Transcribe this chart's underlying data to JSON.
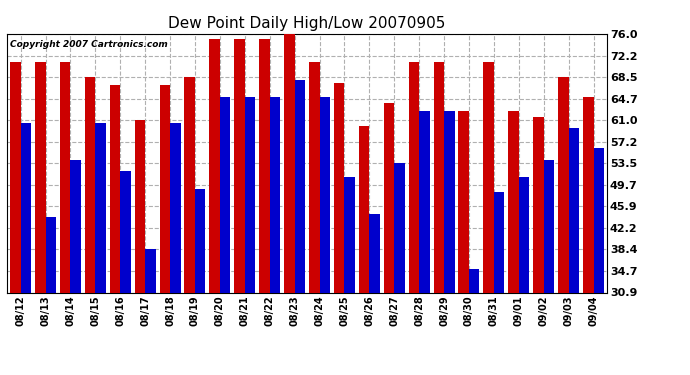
{
  "title": "Dew Point Daily High/Low 20070905",
  "copyright": "Copyright 2007 Cartronics.com",
  "categories": [
    "08/12",
    "08/13",
    "08/14",
    "08/15",
    "08/16",
    "08/17",
    "08/18",
    "08/19",
    "08/20",
    "08/21",
    "08/22",
    "08/23",
    "08/24",
    "08/25",
    "08/26",
    "08/27",
    "08/28",
    "08/29",
    "08/30",
    "08/31",
    "09/01",
    "09/02",
    "09/03",
    "09/04"
  ],
  "highs": [
    71.0,
    71.0,
    71.0,
    68.5,
    67.0,
    61.0,
    67.0,
    68.5,
    75.0,
    75.0,
    75.0,
    76.0,
    71.0,
    67.5,
    60.0,
    64.0,
    71.0,
    71.0,
    62.5,
    71.0,
    62.5,
    61.5,
    68.5,
    65.0
  ],
  "lows": [
    60.5,
    44.0,
    54.0,
    60.5,
    52.0,
    38.5,
    60.5,
    49.0,
    65.0,
    65.0,
    65.0,
    68.0,
    65.0,
    51.0,
    44.5,
    53.5,
    62.5,
    62.5,
    35.0,
    48.5,
    51.0,
    54.0,
    59.5,
    56.0
  ],
  "high_color": "#cc0000",
  "low_color": "#0000cc",
  "background_color": "#ffffff",
  "grid_color": "#b0b0b0",
  "ytick_labels": [
    "30.9",
    "34.7",
    "38.4",
    "42.2",
    "45.9",
    "49.7",
    "53.5",
    "57.2",
    "61.0",
    "64.7",
    "68.5",
    "72.2",
    "76.0"
  ],
  "ytick_values": [
    30.9,
    34.7,
    38.4,
    42.2,
    45.9,
    49.7,
    53.5,
    57.2,
    61.0,
    64.7,
    68.5,
    72.2,
    76.0
  ],
  "ymin": 30.9,
  "ymax": 76.0
}
